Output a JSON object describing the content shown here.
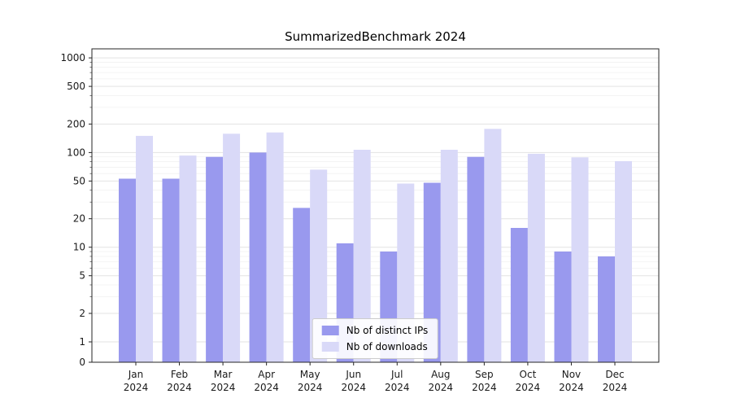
{
  "chart_data": {
    "type": "bar",
    "title": "SummarizedBenchmark 2024",
    "xlabel": "",
    "ylabel": "",
    "yscale": "symlog",
    "grid": true,
    "legend_position": "lower center",
    "yticks": [
      0,
      1,
      2,
      5,
      10,
      20,
      50,
      100,
      200,
      500,
      1000
    ],
    "ylim": [
      0,
      1250
    ],
    "categories": [
      "Jan 2024",
      "Feb 2024",
      "Mar 2024",
      "Apr 2024",
      "May 2024",
      "Jun 2024",
      "Jul 2024",
      "Aug 2024",
      "Sep 2024",
      "Oct 2024",
      "Nov 2024",
      "Dec 2024"
    ],
    "series": [
      {
        "name": "Nb of distinct IPs",
        "color": "#9999ee",
        "values": [
          53,
          53,
          90,
          100,
          26,
          11,
          9,
          48,
          90,
          16,
          9,
          8
        ]
      },
      {
        "name": "Nb of downloads",
        "color": "#d9d9f8",
        "values": [
          150,
          93,
          158,
          163,
          66,
          107,
          47,
          107,
          178,
          97,
          89,
          81
        ]
      }
    ]
  }
}
